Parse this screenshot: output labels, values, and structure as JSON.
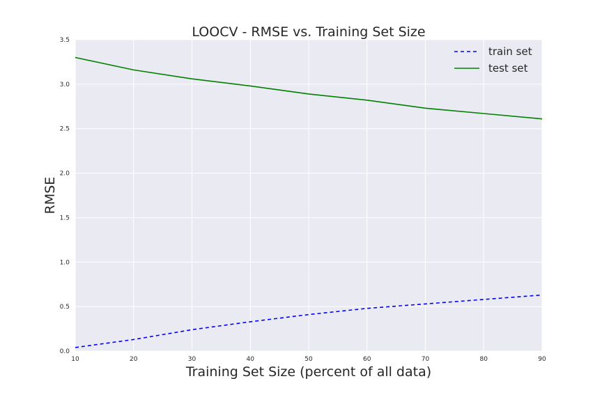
{
  "chart_data": {
    "type": "line",
    "title": "LOOCV - RMSE vs. Training Set Size",
    "xlabel": "Training Set Size (percent of all data)",
    "ylabel": "RMSE",
    "xlim": [
      10,
      90
    ],
    "ylim": [
      0,
      3.5
    ],
    "xticks": [
      10,
      20,
      30,
      40,
      50,
      60,
      70,
      80,
      90
    ],
    "yticks": [
      0.0,
      0.5,
      1.0,
      1.5,
      2.0,
      2.5,
      3.0,
      3.5
    ],
    "ytick_labels": [
      "0.0",
      "0.5",
      "1.0",
      "1.5",
      "2.0",
      "2.5",
      "3.0",
      "3.5"
    ],
    "grid": true,
    "legend_position": "top-right",
    "x": [
      10,
      20,
      30,
      40,
      50,
      60,
      70,
      80,
      90
    ],
    "series": [
      {
        "name": "train set",
        "style": "dashed",
        "color": "#0000ff",
        "values": [
          0.04,
          0.13,
          0.24,
          0.33,
          0.41,
          0.48,
          0.53,
          0.58,
          0.63
        ]
      },
      {
        "name": "test set",
        "style": "solid",
        "color": "#008000",
        "values": [
          3.3,
          3.16,
          3.06,
          2.98,
          2.89,
          2.82,
          2.73,
          2.67,
          2.61
        ]
      }
    ],
    "background_color": "#eaeaf2",
    "grid_color": "#ffffff"
  }
}
